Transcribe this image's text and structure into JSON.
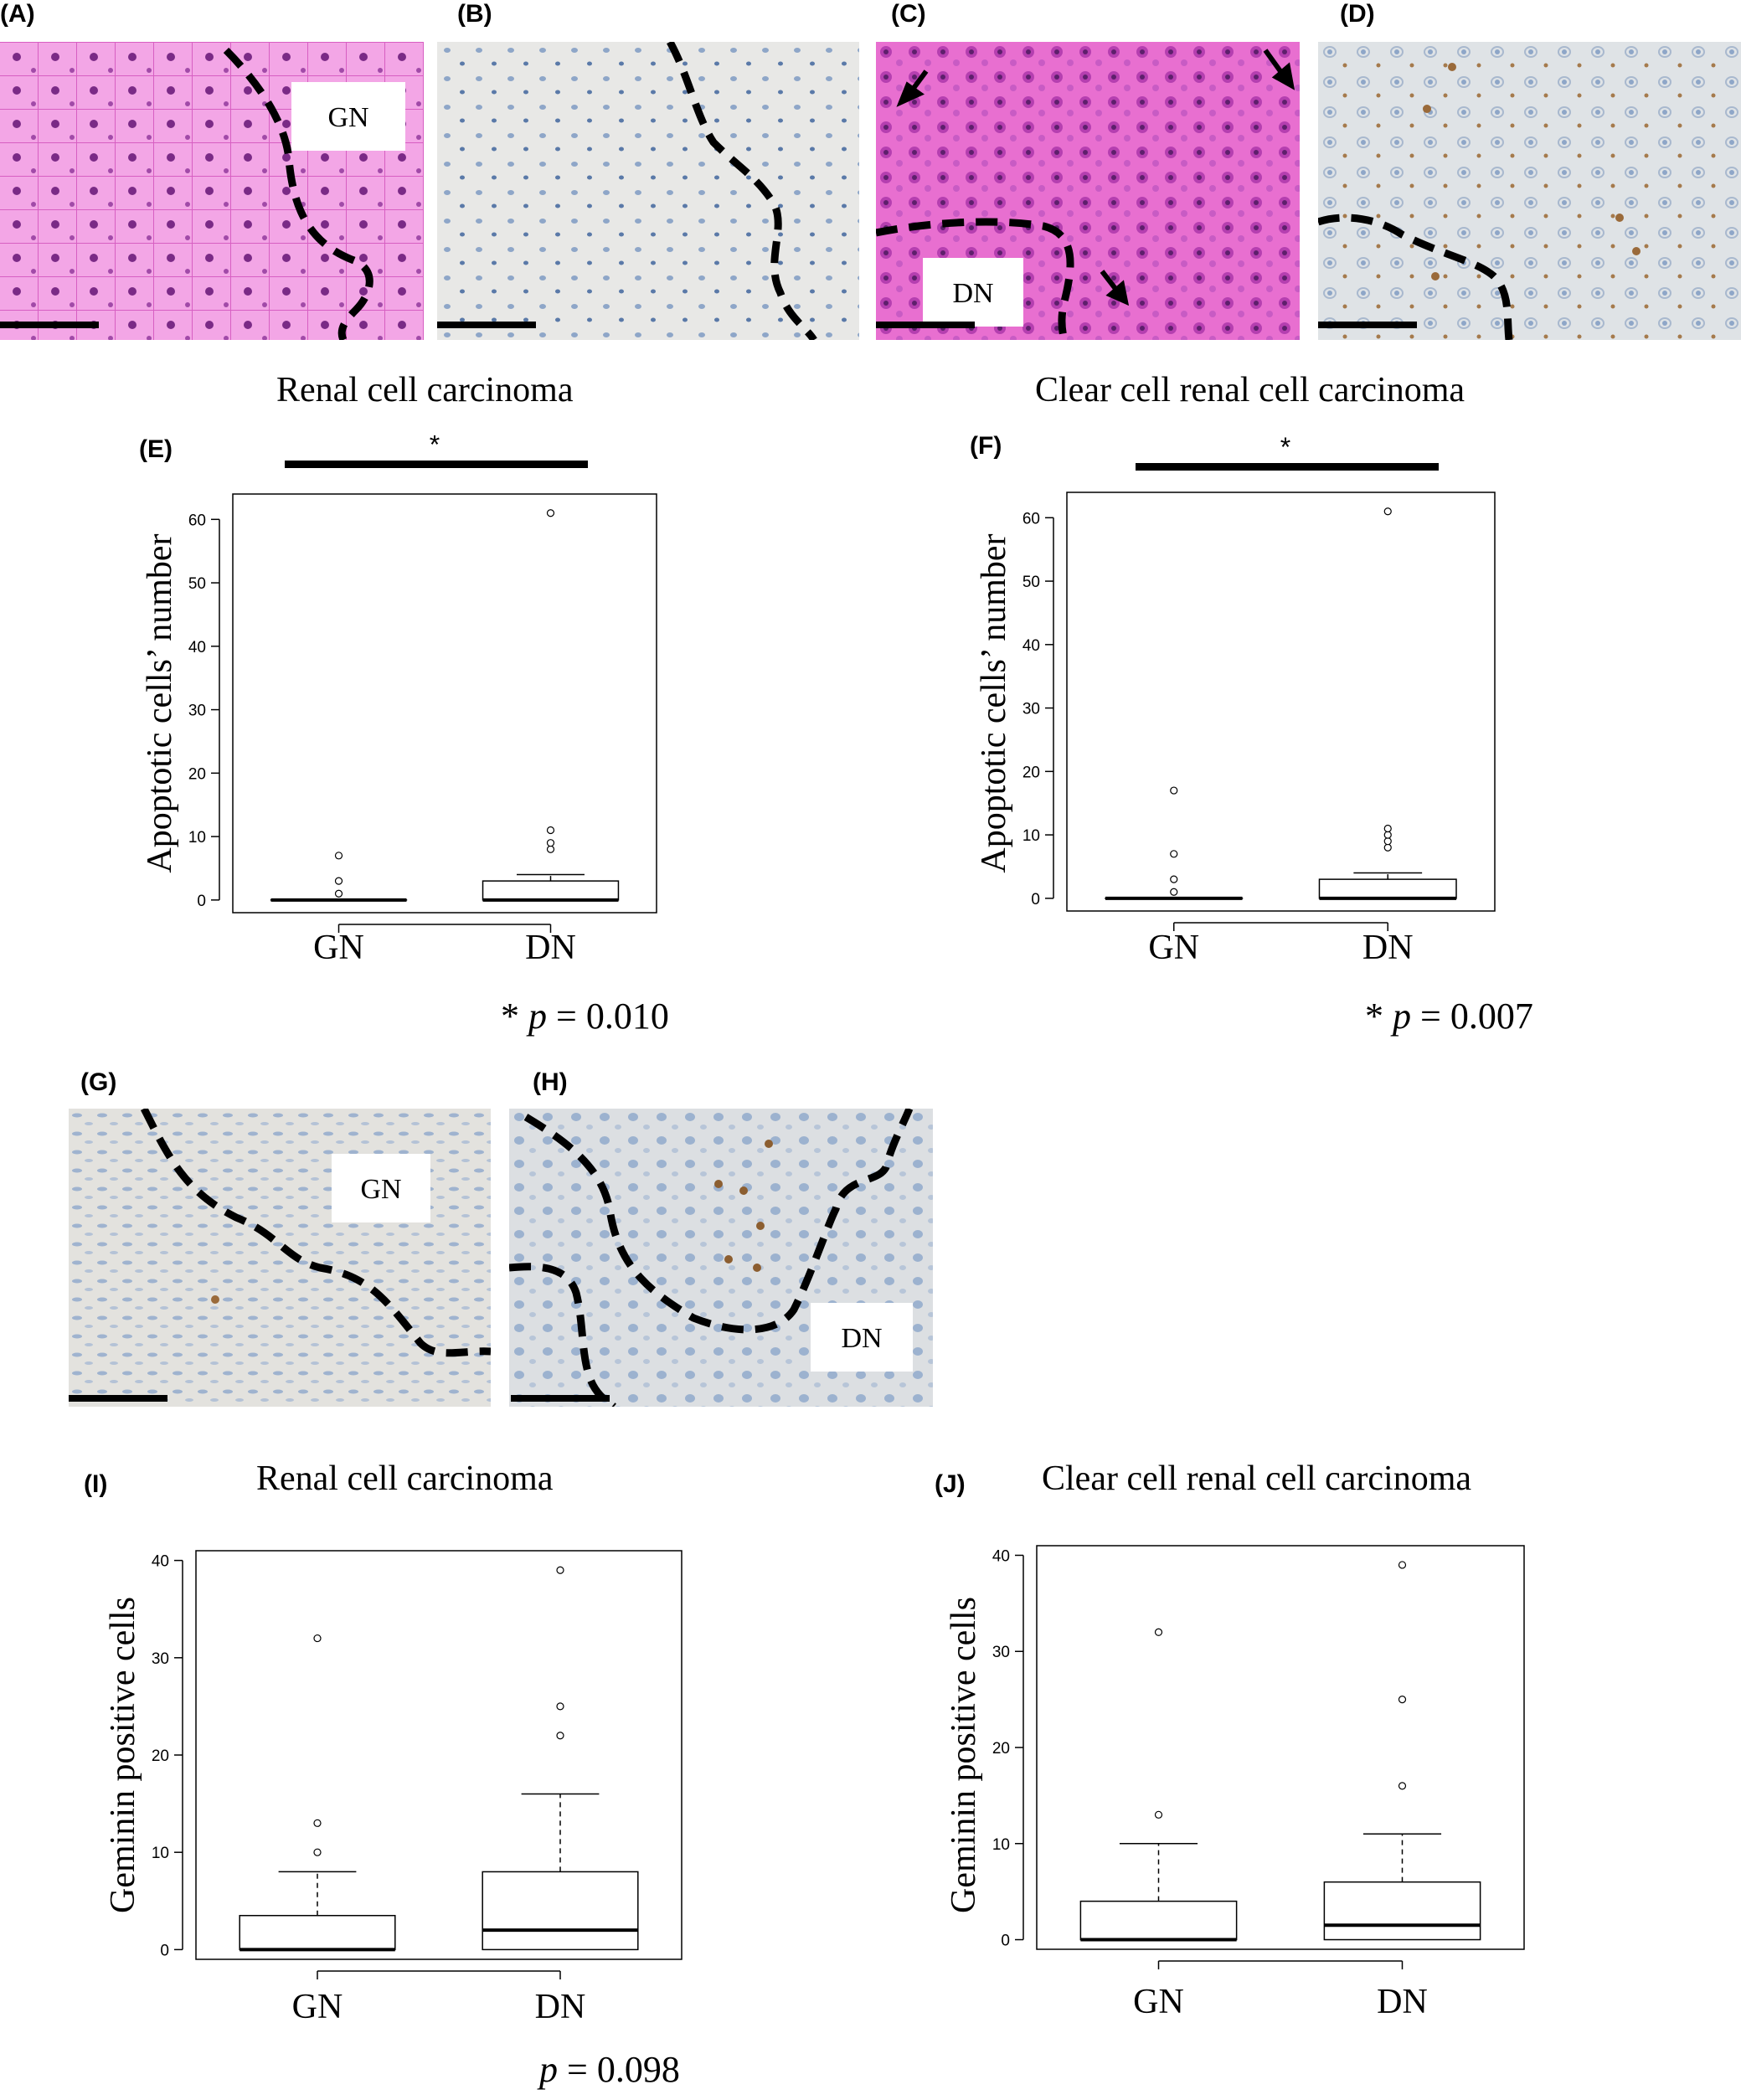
{
  "panels": {
    "A": "(A)",
    "B": "(B)",
    "C": "(C)",
    "D": "(D)",
    "E": "(E)",
    "F": "(F)",
    "G": "(G)",
    "H": "(H)",
    "I": "(I)",
    "J": "(J)"
  },
  "micro_labels": {
    "A": "GN",
    "C": "DN",
    "G": "GN",
    "H": "DN"
  },
  "colors": {
    "he_stain": "#e86fd0",
    "ihc_background": "#e6e6e4",
    "dab_brown": "#9a6a3a",
    "hematoxylin_blue": "#8ea6c8"
  },
  "chart_data": [
    {
      "panel": "E",
      "type": "box",
      "title": "Renal cell carcinoma",
      "ylabel": "Apoptotic cells’ number",
      "categories": [
        "GN",
        "DN"
      ],
      "ylim": [
        -2,
        64
      ],
      "yticks": [
        0,
        10,
        20,
        30,
        40,
        50,
        60
      ],
      "boxes": [
        {
          "q1": 0,
          "median": 0,
          "q3": 0,
          "whisker_low": 0,
          "whisker_high": 0,
          "outliers": [
            1,
            3,
            7
          ]
        },
        {
          "q1": 0,
          "median": 0,
          "q3": 3,
          "whisker_low": 0,
          "whisker_high": 4,
          "outliers": [
            8,
            9,
            11,
            61
          ]
        }
      ],
      "significance": "*",
      "p_prefix": "* ",
      "p_label": "p",
      "p_value": " = 0.010"
    },
    {
      "panel": "F",
      "type": "box",
      "title": "Clear cell renal cell carcinoma",
      "ylabel": "Apoptotic cells’ number",
      "categories": [
        "GN",
        "DN"
      ],
      "ylim": [
        -2,
        64
      ],
      "yticks": [
        0,
        10,
        20,
        30,
        40,
        50,
        60
      ],
      "boxes": [
        {
          "q1": 0,
          "median": 0,
          "q3": 0,
          "whisker_low": 0,
          "whisker_high": 0,
          "outliers": [
            1,
            3,
            7,
            17
          ]
        },
        {
          "q1": 0,
          "median": 0,
          "q3": 3,
          "whisker_low": 0,
          "whisker_high": 4,
          "outliers": [
            8,
            9,
            10,
            11,
            61
          ]
        }
      ],
      "significance": "*",
      "p_prefix": "* ",
      "p_label": "p",
      "p_value": " = 0.007"
    },
    {
      "panel": "I",
      "type": "box",
      "title": "Renal cell carcinoma",
      "ylabel": "Geminin positive cells",
      "categories": [
        "GN",
        "DN"
      ],
      "ylim": [
        -1,
        41
      ],
      "yticks": [
        0,
        10,
        20,
        30,
        40
      ],
      "boxes": [
        {
          "q1": 0,
          "median": 0,
          "q3": 3.5,
          "whisker_low": 0,
          "whisker_high": 8,
          "outliers": [
            10,
            13,
            32
          ]
        },
        {
          "q1": 0,
          "median": 2,
          "q3": 8,
          "whisker_low": 0,
          "whisker_high": 16,
          "outliers": [
            22,
            25,
            39
          ]
        }
      ],
      "significance": "",
      "p_prefix": "",
      "p_label": "p",
      "p_value": " = 0.098"
    },
    {
      "panel": "J",
      "type": "box",
      "title": "Clear cell renal cell carcinoma",
      "ylabel": "Geminin positive cells",
      "categories": [
        "GN",
        "DN"
      ],
      "ylim": [
        -1,
        41
      ],
      "yticks": [
        0,
        10,
        20,
        30,
        40
      ],
      "boxes": [
        {
          "q1": 0,
          "median": 0,
          "q3": 4,
          "whisker_low": 0,
          "whisker_high": 10,
          "outliers": [
            13,
            32
          ]
        },
        {
          "q1": 0,
          "median": 1.5,
          "q3": 6,
          "whisker_low": 0,
          "whisker_high": 11,
          "outliers": [
            16,
            25,
            39
          ]
        }
      ],
      "significance": "",
      "p_prefix": "",
      "p_label": "",
      "p_value": ""
    }
  ]
}
